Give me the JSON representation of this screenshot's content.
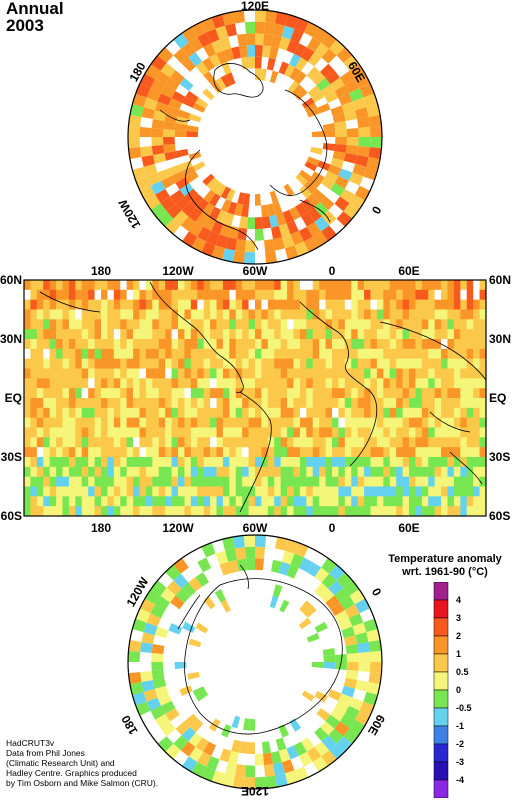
{
  "title": {
    "line1": "Annual",
    "line2": "2003"
  },
  "north_map": {
    "labels": {
      "top": "120E",
      "right": "60E",
      "left": "180",
      "lowerleft": "120W",
      "lowerright": "0"
    }
  },
  "equatorial_map": {
    "top_lon_labels": [
      "180",
      "120W",
      "60W",
      "0",
      "60E"
    ],
    "bottom_lon_labels": [
      "180",
      "120W",
      "60W",
      "0",
      "60E"
    ],
    "lat_labels": [
      "60N",
      "30N",
      "EQ",
      "30S",
      "60S"
    ]
  },
  "south_map": {
    "labels": {
      "upperleft": "120W",
      "upperright": "0",
      "left": "180",
      "right": "60E",
      "bottom": "120E"
    }
  },
  "legend": {
    "title_line1": "Temperature anomaly",
    "title_line2": "wrt. 1961-90  (°C)",
    "tick_labels": [
      "4",
      "3",
      "2",
      "1",
      "0.5",
      "0",
      "-0.5",
      "-1",
      "-2",
      "-3",
      "-4"
    ],
    "colors": [
      "#a0208c",
      "#e8141e",
      "#f85a1e",
      "#fa9628",
      "#fbc84a",
      "#f5f57a",
      "#78e650",
      "#64d2ee",
      "#3c82e6",
      "#2828d2",
      "#2810b4",
      "#8a28e6"
    ]
  },
  "credits": {
    "line1": "HadCRUT3v",
    "line2": "Data from Phil Jones",
    "line3": "(Climatic Research Unit) and",
    "line4": "Hadley Centre.  Graphics produced",
    "line5": "by Tim Osborn and Mike Salmon (CRU)."
  }
}
